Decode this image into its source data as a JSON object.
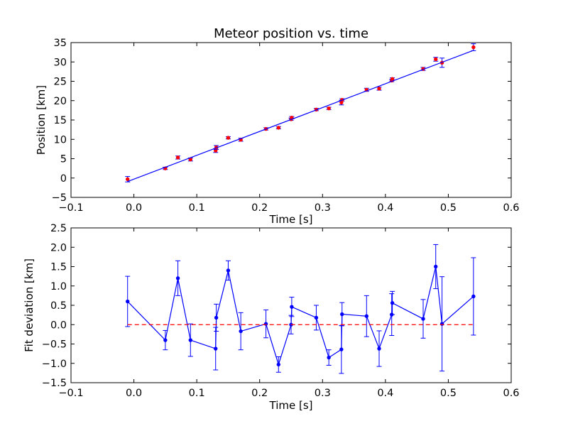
{
  "chart_data": [
    {
      "type": "scatter",
      "title": "Meteor position vs. time",
      "xlabel": "Time [s]",
      "ylabel": "Position [km]",
      "xlim": [
        -0.1,
        0.6
      ],
      "ylim": [
        -5,
        35
      ],
      "xticks": [
        -0.1,
        0.0,
        0.1,
        0.2,
        0.3,
        0.4,
        0.5,
        0.6
      ],
      "xtick_labels": [
        "−0.1",
        "0.0",
        "0.1",
        "0.2",
        "0.3",
        "0.4",
        "0.5",
        "0.6"
      ],
      "yticks": [
        -5,
        0,
        5,
        10,
        15,
        20,
        25,
        30,
        35
      ],
      "ytick_labels": [
        "−5",
        "0",
        "5",
        "10",
        "15",
        "20",
        "25",
        "30",
        "35"
      ],
      "grid": false,
      "series": [
        {
          "kind": "points_with_errorbars",
          "color": "#ff0000",
          "x": [
            -0.01,
            0.05,
            0.07,
            0.09,
            0.13,
            0.131,
            0.15,
            0.17,
            0.21,
            0.23,
            0.25,
            0.251,
            0.29,
            0.31,
            0.33,
            0.331,
            0.37,
            0.39,
            0.41,
            0.411,
            0.46,
            0.48,
            0.49,
            0.54
          ],
          "y": [
            -0.3,
            2.5,
            5.3,
            4.8,
            7.1,
            7.9,
            10.4,
            9.9,
            12.7,
            13.0,
            15.2,
            15.6,
            17.7,
            18.0,
            19.5,
            20.2,
            22.8,
            23.1,
            25.2,
            25.6,
            28.2,
            30.7,
            29.8,
            33.8
          ],
          "err": [
            0.7,
            0.3,
            0.4,
            0.4,
            0.5,
            0.5,
            0.3,
            0.4,
            0.3,
            0.3,
            0.3,
            0.3,
            0.3,
            0.3,
            0.6,
            0.3,
            0.4,
            0.4,
            0.3,
            0.3,
            0.4,
            0.5,
            1.2,
            0.9
          ]
        },
        {
          "kind": "fit_line",
          "color": "#0000ff",
          "x": [
            -0.01,
            0.54
          ],
          "y": [
            -0.9,
            33.0
          ]
        }
      ]
    },
    {
      "type": "line",
      "title": "",
      "xlabel": "Time [s]",
      "ylabel": "Fit deviation [km]",
      "xlim": [
        -0.1,
        0.6
      ],
      "ylim": [
        -1.5,
        2.5
      ],
      "xticks": [
        -0.1,
        0.0,
        0.1,
        0.2,
        0.3,
        0.4,
        0.5,
        0.6
      ],
      "xtick_labels": [
        "−0.1",
        "0.0",
        "0.1",
        "0.2",
        "0.3",
        "0.4",
        "0.5",
        "0.6"
      ],
      "yticks": [
        -1.5,
        -1.0,
        -0.5,
        0.0,
        0.5,
        1.0,
        1.5,
        2.0,
        2.5
      ],
      "ytick_labels": [
        "−1.5",
        "−1.0",
        "−0.5",
        "0.0",
        "0.5",
        "1.0",
        "1.5",
        "2.0",
        "2.5"
      ],
      "grid": false,
      "series": [
        {
          "kind": "line_with_errorbars",
          "color": "#0000ff",
          "x": [
            -0.01,
            0.05,
            0.07,
            0.09,
            0.13,
            0.131,
            0.15,
            0.17,
            0.21,
            0.23,
            0.25,
            0.251,
            0.29,
            0.31,
            0.33,
            0.331,
            0.37,
            0.39,
            0.41,
            0.411,
            0.46,
            0.48,
            0.49,
            0.54
          ],
          "y": [
            0.6,
            -0.4,
            1.2,
            -0.4,
            -0.62,
            0.18,
            1.4,
            -0.17,
            0.02,
            -1.03,
            0.0,
            0.46,
            0.18,
            -0.85,
            -0.64,
            0.27,
            0.22,
            -0.62,
            0.26,
            0.56,
            0.15,
            1.5,
            0.02,
            0.73
          ],
          "err": [
            0.65,
            0.25,
            0.45,
            0.42,
            0.55,
            0.35,
            0.25,
            0.48,
            0.36,
            0.2,
            0.24,
            0.25,
            0.32,
            0.2,
            0.62,
            0.3,
            0.53,
            0.46,
            0.54,
            0.3,
            0.5,
            0.57,
            1.22,
            1.0
          ]
        },
        {
          "kind": "reference_line",
          "color": "#ff0000",
          "style": "dashed",
          "x": [
            -0.01,
            0.54
          ],
          "y": [
            0.0,
            0.0
          ]
        }
      ]
    }
  ]
}
